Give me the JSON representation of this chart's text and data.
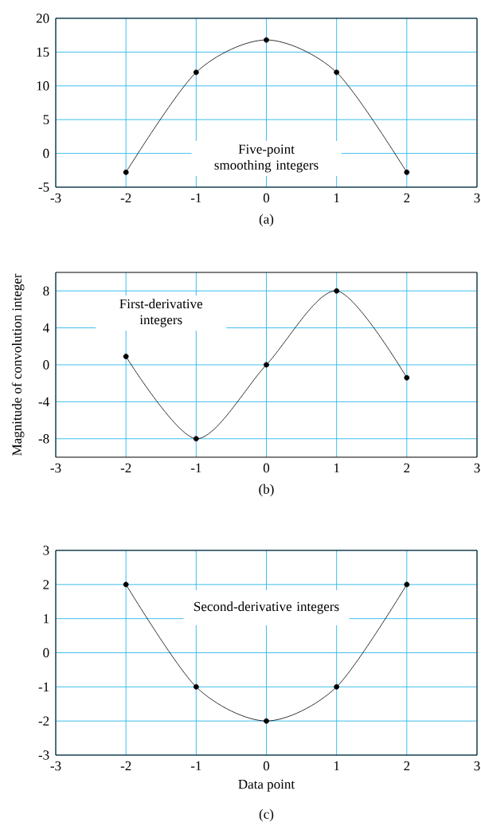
{
  "chart_data": [
    {
      "type": "line",
      "x": [
        -2,
        -1,
        0,
        1,
        2
      ],
      "series": [
        {
          "color": "#000000",
          "values": [
            -2.8,
            12,
            16.8,
            12,
            -2.8
          ]
        }
      ],
      "xlim": [
        -3,
        3
      ],
      "xticks": [
        -3,
        -2,
        -1,
        0,
        1,
        2,
        3
      ],
      "ylim": [
        -5,
        20
      ],
      "yticks": [
        -5,
        0,
        5,
        10,
        15,
        20
      ],
      "grid": true,
      "marker": "circle",
      "annotations": [
        "Five-point smoothing integers"
      ],
      "subtitle": "(a)"
    },
    {
      "type": "line",
      "x": [
        -2,
        -1,
        0,
        1,
        2
      ],
      "series": [
        {
          "color": "#000000",
          "values": [
            0.9,
            -8,
            0,
            8,
            -1.4
          ]
        }
      ],
      "xlim": [
        -3,
        3
      ],
      "xticks": [
        -3,
        -2,
        -1,
        0,
        1,
        2,
        3
      ],
      "ylim": [
        -10,
        10
      ],
      "yticks": [
        -8,
        -4,
        0,
        4,
        8
      ],
      "grid": true,
      "marker": "circle",
      "annotations": [
        "First-derivative integers"
      ],
      "subtitle": "(b)",
      "ylabel": "Magnitude of convolution integer"
    },
    {
      "type": "line",
      "x": [
        -2,
        -1,
        0,
        1,
        2
      ],
      "series": [
        {
          "color": "#000000",
          "values": [
            2,
            -1,
            -2,
            -1,
            2
          ]
        }
      ],
      "xlim": [
        -3,
        3
      ],
      "xticks": [
        -3,
        -2,
        -1,
        0,
        1,
        2,
        3
      ],
      "ylim": [
        -3,
        3
      ],
      "yticks": [
        -3,
        -2,
        -1,
        0,
        1,
        2,
        3
      ],
      "grid": true,
      "marker": "circle",
      "annotations": [
        "Second-derivative integers"
      ],
      "subtitle": "(c)",
      "xlabel": "Data point"
    }
  ]
}
